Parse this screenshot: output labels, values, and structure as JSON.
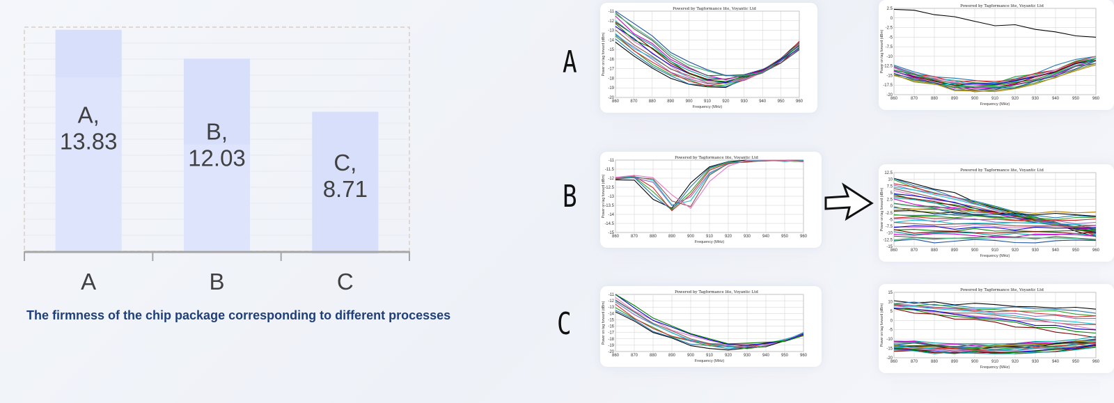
{
  "chart_data": [
    {
      "type": "bar",
      "title": "The firmness of the chip package corresponding to different processes",
      "categories": [
        "A",
        "B",
        "C"
      ],
      "values": [
        13.83,
        12.03,
        8.71
      ],
      "data_labels": [
        "A,|13.83",
        "B,|12.03",
        "C,|8.71"
      ],
      "ylim": [
        0,
        14
      ],
      "xlabel": "",
      "ylabel": "",
      "grid": true,
      "colors": {
        "bar": "#dde4fb",
        "bar_top": "#d4ddfa",
        "text": "#404040",
        "axis": "#a6a6a6"
      }
    }
  ],
  "caption": "The firmness of the chip package corresponding to different processes",
  "rows": [
    {
      "letter": "A"
    },
    {
      "letter": "B"
    },
    {
      "letter": "C"
    }
  ],
  "thumbnails": [
    {
      "id": "a-before",
      "header": "Powered by Tagformance lite, Voyantic Ltd",
      "xlabel": "Frequency (MHz)",
      "ylabel": "Power on tag forward (dBm)",
      "xticks": [
        "860",
        "870",
        "880",
        "890",
        "900",
        "910",
        "920",
        "930",
        "940",
        "950",
        "960"
      ],
      "yticks": [
        "-11",
        "-12",
        "-13",
        "-14",
        "-15",
        "-16",
        "-17",
        "-18",
        "-19",
        "-20"
      ],
      "ymin": -20,
      "ymax": -11,
      "series": 16,
      "shape": "u-a"
    },
    {
      "id": "a-after",
      "header": "Powered by Tagformance lite, Voyantic Ltd",
      "xlabel": "Frequency (MHz)",
      "ylabel": "Power on tag forward (dBm)",
      "xticks": [
        "860",
        "870",
        "880",
        "890",
        "900",
        "910",
        "920",
        "930",
        "940",
        "950",
        "960"
      ],
      "yticks": [
        "2.5",
        "0",
        "-2.5",
        "-5",
        "-7.5",
        "-10",
        "-12.5",
        "-15",
        "-17.5",
        "-20"
      ],
      "ymin": -20,
      "ymax": 2.5,
      "series": 18,
      "shape": "flat-low"
    },
    {
      "id": "b-before",
      "header": "Powered by Tagformance lite, Voyantic Ltd",
      "xlabel": "Frequency (MHz)",
      "ylabel": "Power on tag forward (dBm)",
      "xticks": [
        "860",
        "870",
        "880",
        "890",
        "900",
        "910",
        "920",
        "930",
        "940",
        "950",
        "960"
      ],
      "yticks": [
        "-11",
        "-11.5",
        "-12",
        "-12.5",
        "-13",
        "-13.5",
        "-14",
        "-14.5",
        "-15"
      ],
      "ymin": -15,
      "ymax": -11,
      "series": 8,
      "shape": "dip-b"
    },
    {
      "id": "b-after",
      "header": "Powered by Tagformance lite, Voyantic Ltd",
      "xlabel": "Frequency (MHz)",
      "ylabel": "Power on tag forward (dBm)",
      "xticks": [
        "860",
        "870",
        "880",
        "890",
        "900",
        "910",
        "920",
        "930",
        "940",
        "950",
        "960"
      ],
      "yticks": [
        "12.5",
        "10",
        "7.5",
        "5",
        "2.5",
        "0",
        "-2.5",
        "-5",
        "-7.5",
        "-10",
        "-12.5",
        "-15"
      ],
      "ymin": -15,
      "ymax": 12.5,
      "series": 34,
      "shape": "spread"
    },
    {
      "id": "c-before",
      "header": "Powered by Tagformance lite, Voyantic Ltd",
      "xlabel": "Frequency (MHz)",
      "ylabel": "Power on tag forward (dBm)",
      "xticks": [
        "860",
        "870",
        "880",
        "890",
        "900",
        "910",
        "920",
        "930",
        "940",
        "950",
        "960"
      ],
      "yticks": [
        "-11",
        "-12",
        "-13",
        "-14",
        "-15",
        "-16",
        "-17",
        "-18",
        "-19",
        "-20"
      ],
      "ymin": -20,
      "ymax": -11,
      "series": 10,
      "shape": "u-c"
    },
    {
      "id": "c-after",
      "header": "Powered by Tagformance lite, Voyantic Ltd",
      "xlabel": "Frequency (MHz)",
      "ylabel": "Power on tag forward (dBm)",
      "xticks": [
        "860",
        "870",
        "880",
        "890",
        "900",
        "910",
        "920",
        "930",
        "940",
        "950",
        "960"
      ],
      "yticks": [
        "15",
        "10",
        "5",
        "0",
        "-5",
        "-10",
        "-15",
        "-20"
      ],
      "ymin": -20,
      "ymax": 15,
      "series": 30,
      "shape": "split"
    }
  ],
  "palette": [
    "#000000",
    "#1f77b4",
    "#2ca02c",
    "#d62728",
    "#9467bd",
    "#17becf",
    "#8c564b",
    "#e377c2",
    "#0000cc",
    "#008000",
    "#800000",
    "#00a0a0",
    "#cc00cc",
    "#555555",
    "#3cb371",
    "#1e4fa0",
    "#6b8e23",
    "#b8860b"
  ]
}
